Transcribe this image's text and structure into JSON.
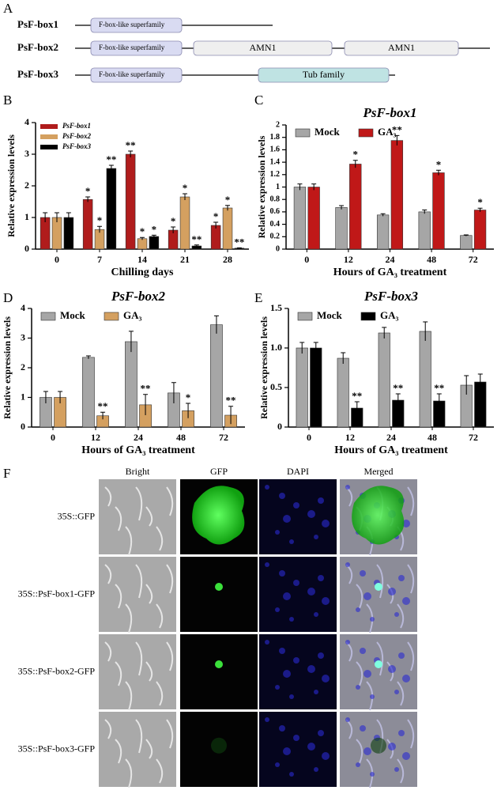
{
  "panel_labels": [
    "A",
    "B",
    "C",
    "D",
    "E",
    "F"
  ],
  "domain_diagram": {
    "proteins": [
      {
        "name": "PsF-box1",
        "domains": [
          "F-box-like superfamily"
        ]
      },
      {
        "name": "PsF-box2",
        "domains": [
          "F-box-like superfamily",
          "AMN1",
          "AMN1"
        ]
      },
      {
        "name": "PsF-box3",
        "domains": [
          "F-box-like superfamily",
          "Tub family"
        ]
      }
    ]
  },
  "chart_data": [
    {
      "type": "bar",
      "ylabel": "Relative expression levels",
      "xlabel": "Chilling days",
      "categories": [
        "0",
        "7",
        "14",
        "21",
        "28"
      ],
      "ylim": [
        0,
        4
      ],
      "yticks": [
        0,
        1,
        2,
        3,
        4
      ],
      "legend": "upper left",
      "series": [
        {
          "name": "PsF-box1",
          "color": "#b01c1c",
          "values": [
            1.0,
            1.57,
            3.0,
            0.6,
            0.75
          ],
          "errors": [
            0.15,
            0.08,
            0.1,
            0.1,
            0.1
          ],
          "annotations": [
            null,
            "*",
            "**",
            "*",
            "*"
          ]
        },
        {
          "name": "PsF-box2",
          "color": "#d4a060",
          "values": [
            1.0,
            0.62,
            0.33,
            1.65,
            1.3
          ],
          "errors": [
            0.15,
            0.1,
            0.04,
            0.1,
            0.08
          ],
          "annotations": [
            null,
            "*",
            "*",
            "*",
            "*"
          ]
        },
        {
          "name": "PsF-box3",
          "color": "#000000",
          "values": [
            1.0,
            2.55,
            0.4,
            0.1,
            0.03
          ],
          "errors": [
            0.15,
            0.1,
            0.04,
            0.03,
            0.01
          ],
          "annotations": [
            null,
            "**",
            "*",
            "**",
            "**"
          ]
        }
      ]
    },
    {
      "type": "bar",
      "title": "PsF-box1",
      "ylabel": "Relative expression levels",
      "xlabel": "Hours of GA₃ treatment",
      "categories": [
        "0",
        "12",
        "24",
        "48",
        "72"
      ],
      "ylim": [
        0,
        2
      ],
      "yticks": [
        0,
        0.2,
        0.4,
        0.6,
        0.8,
        1,
        1.2,
        1.4,
        1.6,
        1.8,
        2
      ],
      "legend": "top",
      "series": [
        {
          "name": "Mock",
          "color": "#a6a6a6",
          "values": [
            1.0,
            0.67,
            0.55,
            0.6,
            0.22
          ],
          "errors": [
            0.05,
            0.03,
            0.02,
            0.03,
            0.01
          ],
          "annotations": [
            null,
            null,
            null,
            null,
            null
          ]
        },
        {
          "name": "GA₃",
          "color": "#c01818",
          "values": [
            1.0,
            1.37,
            1.75,
            1.23,
            0.63
          ],
          "errors": [
            0.05,
            0.06,
            0.08,
            0.04,
            0.03
          ],
          "annotations": [
            null,
            "*",
            "**",
            "*",
            "*"
          ]
        }
      ]
    },
    {
      "type": "bar",
      "title": "PsF-box2",
      "ylabel": "Relative expression levels",
      "xlabel": "Hours of GA₃ treatment",
      "categories": [
        "0",
        "12",
        "24",
        "48",
        "72"
      ],
      "ylim": [
        0,
        4
      ],
      "yticks": [
        0,
        1,
        2,
        3,
        4
      ],
      "legend": "top",
      "series": [
        {
          "name": "Mock",
          "color": "#a6a6a6",
          "values": [
            1.0,
            2.35,
            2.88,
            1.15,
            3.45
          ],
          "errors": [
            0.2,
            0.05,
            0.35,
            0.35,
            0.3
          ],
          "annotations": [
            null,
            null,
            null,
            null,
            null
          ]
        },
        {
          "name": "GA₃",
          "color": "#d4a060",
          "values": [
            1.0,
            0.38,
            0.75,
            0.55,
            0.4
          ],
          "errors": [
            0.2,
            0.12,
            0.35,
            0.25,
            0.3
          ],
          "annotations": [
            null,
            "**",
            "**",
            "*",
            "**"
          ]
        }
      ]
    },
    {
      "type": "bar",
      "title": "PsF-box3",
      "ylabel": "Relative expression levels",
      "xlabel": "Hours of GA₃ treatment",
      "categories": [
        "0",
        "12",
        "24",
        "48",
        "72"
      ],
      "ylim": [
        0,
        1.5
      ],
      "yticks": [
        0,
        0.5,
        {
          "value": 1,
          "label": "1.0"
        },
        1.5
      ],
      "legend": "top",
      "series": [
        {
          "name": "Mock",
          "color": "#a6a6a6",
          "values": [
            1.0,
            0.87,
            1.19,
            1.21,
            0.53
          ],
          "errors": [
            0.07,
            0.07,
            0.07,
            0.12,
            0.12
          ],
          "annotations": [
            null,
            null,
            null,
            null,
            null
          ]
        },
        {
          "name": "GA₃",
          "color": "#000000",
          "values": [
            1.0,
            0.24,
            0.34,
            0.33,
            0.57
          ],
          "errors": [
            0.07,
            0.08,
            0.08,
            0.09,
            0.1
          ],
          "annotations": [
            null,
            "**",
            "**",
            "**",
            null
          ]
        }
      ]
    }
  ],
  "micrographs": {
    "columns": [
      "Bright",
      "GFP",
      "DAPI",
      "Merged"
    ],
    "rows": [
      "35S::GFP",
      "35S::PsF-box1-GFP",
      "35S::PsF-box2-GFP",
      "35S::PsF-box3-GFP"
    ]
  }
}
